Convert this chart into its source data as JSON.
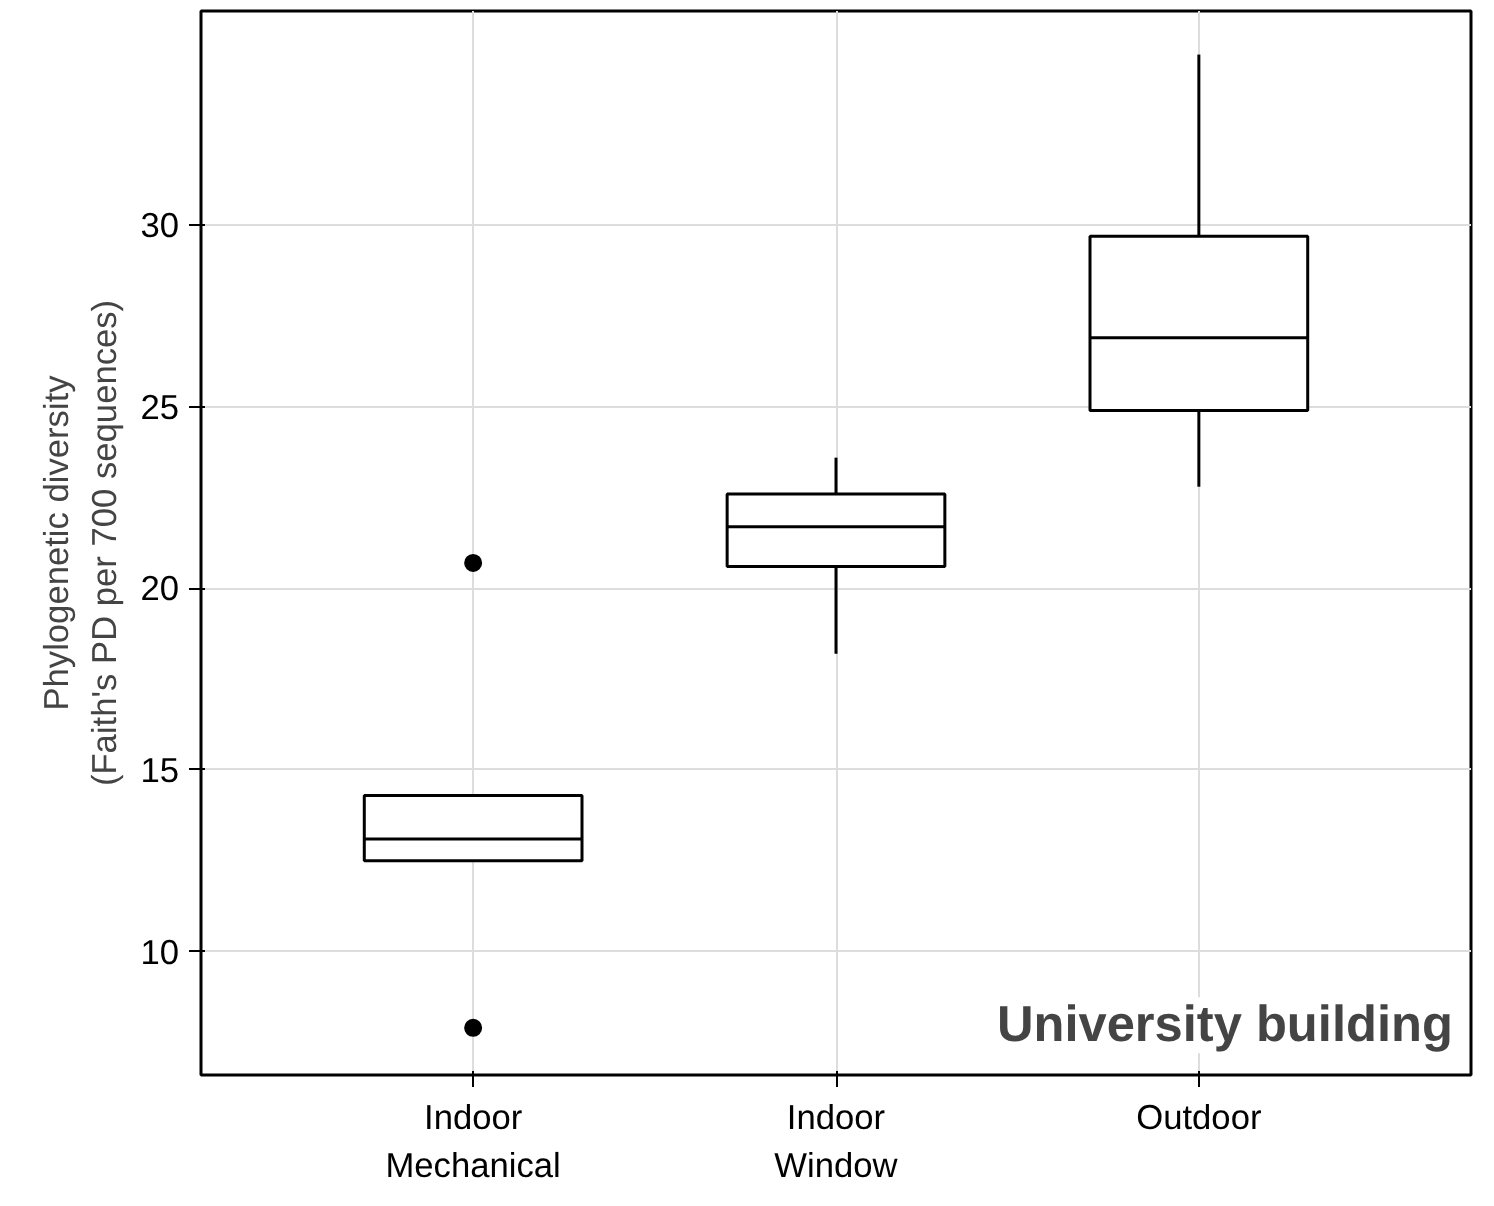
{
  "chart_data": {
    "type": "box",
    "ylabel": "Phylogenetic diversity\n(Faith's PD per 700 sequences)",
    "categories": [
      "Indoor\nMechanical",
      "Indoor\nWindow",
      "Outdoor"
    ],
    "boxes": [
      {
        "low": 12.5,
        "q1": 12.5,
        "median": 13.1,
        "q3": 14.3,
        "high": 14.3,
        "outliers": [
          20.7,
          7.9
        ]
      },
      {
        "low": 18.2,
        "q1": 20.6,
        "median": 21.7,
        "q3": 22.6,
        "high": 23.6
      },
      {
        "low": 22.8,
        "q1": 24.9,
        "median": 26.9,
        "q3": 29.7,
        "high": 34.7
      }
    ],
    "ylim": [
      6.6,
      35.9
    ],
    "yticks": [
      10,
      15,
      20,
      25,
      30
    ],
    "grid": true,
    "annotations": [
      "University building"
    ]
  }
}
